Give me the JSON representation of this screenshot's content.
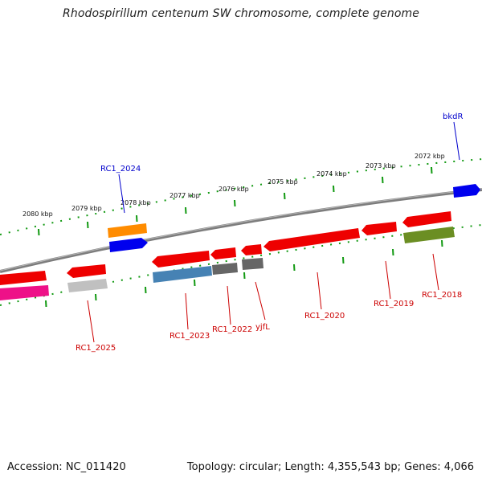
{
  "title": "Rhodospirillum centenum SW chromosome, complete genome",
  "footer": {
    "accession": "Accession: NC_011420",
    "summary": "Topology: circular; Length: 4,355,543 bp; Genes: 4,066"
  },
  "scale_labels": [
    "2080 kbp",
    "2079 kbp",
    "2078 kbp",
    "2077 kbp",
    "2076 kbp",
    "2075 kbp",
    "2074 kbp",
    "2073 kbp",
    "2072 kbp"
  ],
  "gene_labels": [
    {
      "text": "bkdR",
      "color": "#0000cc"
    },
    {
      "text": "RC1_2024",
      "color": "#0000cc"
    },
    {
      "text": "RC1_2025",
      "color": "#cc0000"
    },
    {
      "text": "RC1_2023",
      "color": "#cc0000"
    },
    {
      "text": "RC1_2022",
      "color": "#cc0000"
    },
    {
      "text": "yjfL",
      "color": "#cc0000"
    },
    {
      "text": "RC1_2020",
      "color": "#cc0000"
    },
    {
      "text": "RC1_2019",
      "color": "#cc0000"
    },
    {
      "text": "RC1_2018",
      "color": "#cc0000"
    }
  ],
  "colors": {
    "backbone": "#808080",
    "scale": "#008800",
    "forward_gene": "#0000ee",
    "reverse_gene": "#ee0000",
    "orange_feature": "#ff8800",
    "steel_feature": "#4682b4",
    "gray_feature": "#666666",
    "olive_feature": "#6b8e23",
    "light_gray_feature": "#c0c0c0",
    "magenta_feature": "#ee1188"
  }
}
